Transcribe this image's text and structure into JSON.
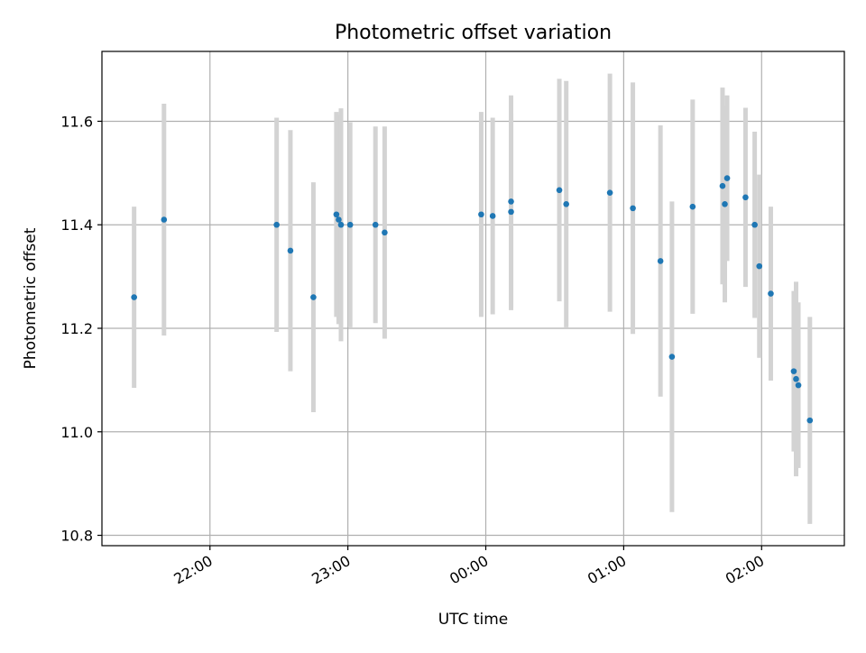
{
  "chart_data": {
    "type": "scatter",
    "title": "Photometric offset variation",
    "xlabel": "UTC time",
    "ylabel": "Photometric offset",
    "xlim": [
      "21:13",
      "02:36"
    ],
    "ylim": [
      10.78,
      11.735
    ],
    "x_ticks": [
      "22:00",
      "23:00",
      "00:00",
      "01:00",
      "02:00"
    ],
    "y_ticks": [
      "10.8",
      "11.0",
      "11.2",
      "11.4",
      "11.6"
    ],
    "grid": true,
    "colors": {
      "point": "#1f77b4",
      "errorbar": "#d3d3d3",
      "grid": "#b0b0b0"
    },
    "points": [
      {
        "x": "21:27",
        "y": 11.26,
        "yerr": 0.175
      },
      {
        "x": "21:40",
        "y": 11.41,
        "yerr": 0.224
      },
      {
        "x": "22:29",
        "y": 11.4,
        "yerr": 0.207
      },
      {
        "x": "22:35",
        "y": 11.35,
        "yerr": 0.233
      },
      {
        "x": "22:45",
        "y": 11.26,
        "yerr": 0.222
      },
      {
        "x": "22:55",
        "y": 11.42,
        "yerr": 0.198
      },
      {
        "x": "22:56",
        "y": 11.41,
        "yerr": 0.202
      },
      {
        "x": "22:57",
        "y": 11.4,
        "yerr": 0.225
      },
      {
        "x": "23:01",
        "y": 11.4,
        "yerr": 0.198
      },
      {
        "x": "23:12",
        "y": 11.4,
        "yerr": 0.19
      },
      {
        "x": "23:16",
        "y": 11.385,
        "yerr": 0.205
      },
      {
        "x": "23:58",
        "y": 11.42,
        "yerr": 0.198
      },
      {
        "x": "00:03",
        "y": 11.417,
        "yerr": 0.19
      },
      {
        "x": "00:11",
        "y": 11.425,
        "yerr": 0.19
      },
      {
        "x": "00:11",
        "y": 11.445,
        "yerr": 0.205
      },
      {
        "x": "00:32",
        "y": 11.467,
        "yerr": 0.215
      },
      {
        "x": "00:35",
        "y": 11.44,
        "yerr": 0.238
      },
      {
        "x": "00:54",
        "y": 11.462,
        "yerr": 0.23
      },
      {
        "x": "01:04",
        "y": 11.432,
        "yerr": 0.243
      },
      {
        "x": "01:16",
        "y": 11.33,
        "yerr": 0.262
      },
      {
        "x": "01:21",
        "y": 11.145,
        "yerr": 0.3
      },
      {
        "x": "01:30",
        "y": 11.435,
        "yerr": 0.207
      },
      {
        "x": "01:43",
        "y": 11.475,
        "yerr": 0.19
      },
      {
        "x": "01:44",
        "y": 11.44,
        "yerr": 0.19
      },
      {
        "x": "01:45",
        "y": 11.49,
        "yerr": 0.16
      },
      {
        "x": "01:53",
        "y": 11.453,
        "yerr": 0.173
      },
      {
        "x": "01:57",
        "y": 11.4,
        "yerr": 0.18
      },
      {
        "x": "01:59",
        "y": 11.32,
        "yerr": 0.177
      },
      {
        "x": "02:04",
        "y": 11.267,
        "yerr": 0.168
      },
      {
        "x": "02:14",
        "y": 11.117,
        "yerr": 0.155
      },
      {
        "x": "02:15",
        "y": 11.102,
        "yerr": 0.188
      },
      {
        "x": "02:16",
        "y": 11.09,
        "yerr": 0.16
      },
      {
        "x": "02:21",
        "y": 11.022,
        "yerr": 0.2
      }
    ]
  }
}
